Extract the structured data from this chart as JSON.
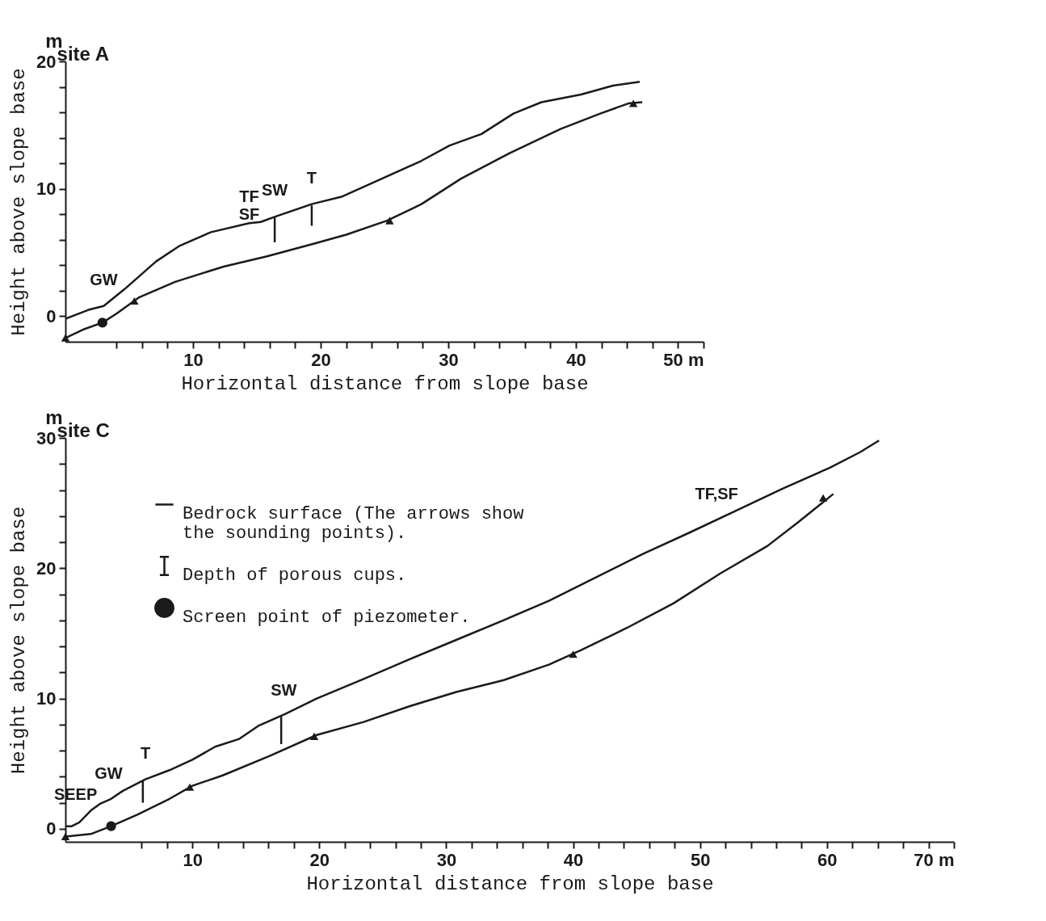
{
  "chart_data": [
    {
      "type": "line",
      "title": "site A",
      "xlabel": "Horizontal distance from slope base",
      "ylabel": "Height above slope base",
      "xlim": [
        0,
        50
      ],
      "ylim": [
        -2,
        20
      ],
      "xticks": [
        {
          "value": 4,
          "label": null
        },
        {
          "value": 6,
          "label": null
        },
        {
          "value": 8,
          "label": null
        },
        10,
        {
          "value": 12,
          "label": null
        },
        {
          "value": 14,
          "label": null
        },
        {
          "value": 16,
          "label": null
        },
        {
          "value": 18,
          "label": null
        },
        20,
        {
          "value": 22,
          "label": null
        },
        {
          "value": 24,
          "label": null
        },
        {
          "value": 26,
          "label": null
        },
        {
          "value": 28,
          "label": null
        },
        30,
        {
          "value": 32,
          "label": null
        },
        {
          "value": 34,
          "label": null
        },
        {
          "value": 36,
          "label": null
        },
        {
          "value": 38,
          "label": null
        },
        40,
        {
          "value": 42,
          "label": null
        },
        {
          "value": 44,
          "label": null
        },
        {
          "value": 46,
          "label": null
        },
        {
          "value": 48,
          "label": null
        },
        {
          "value": 50,
          "label": "50 m"
        }
      ],
      "yticks": [
        0,
        {
          "value": 2,
          "label": null
        },
        {
          "value": 4,
          "label": null
        },
        {
          "value": 6,
          "label": null
        },
        {
          "value": 8,
          "label": null
        },
        10,
        {
          "value": 12,
          "label": null
        },
        {
          "value": 14,
          "label": null
        },
        {
          "value": 16,
          "label": null
        },
        {
          "value": 18,
          "label": null
        },
        20
      ],
      "grid": false,
      "legend": false,
      "series": [
        {
          "type": "line",
          "color": "#1a1a1a",
          "x": [
            0,
            1.8,
            3.0,
            4.6,
            7.1,
            8.9,
            11.4,
            14.4,
            15.3,
            16.4,
            19.3,
            21.7,
            24.8,
            27.9,
            30.1,
            32.6,
            35.1,
            37.3,
            40.4,
            42.9,
            45.0
          ],
          "values": [
            -0.2,
            0.5,
            0.8,
            2.1,
            4.3,
            5.5,
            6.6,
            7.3,
            7.4,
            7.8,
            8.8,
            9.4,
            10.8,
            12.2,
            13.4,
            14.3,
            15.9,
            16.8,
            17.4,
            18.1,
            18.4
          ]
        },
        {
          "type": "line",
          "color": "#1a1a1a",
          "x": [
            0,
            1.5,
            2.9,
            4.0,
            5.8,
            8.6,
            12.4,
            15.8,
            19.5,
            22.0,
            25.2,
            27.9,
            31.0,
            34.8,
            38.8,
            41.9,
            44.1,
            45.2
          ],
          "values": [
            -1.7,
            -1.0,
            -0.5,
            0.2,
            1.5,
            2.7,
            3.9,
            4.7,
            5.7,
            6.4,
            7.5,
            8.8,
            10.8,
            12.8,
            14.7,
            15.9,
            16.7,
            16.8
          ]
        },
        {
          "type": "scatter",
          "marker": "triangle",
          "color": "#1a1a1a",
          "x": [
            0,
            5.4,
            25.4,
            44.5
          ],
          "values": [
            -1.7,
            1.2,
            7.5,
            16.7
          ]
        },
        {
          "type": "bar",
          "color": "#1a1a1a",
          "x": [
            16.4,
            19.3
          ],
          "base": [
            5.8,
            7.1
          ],
          "values": [
            2.0,
            1.6
          ]
        },
        {
          "type": "scatter",
          "marker": "circle",
          "color": "#1a1a1a",
          "x": [
            2.9
          ],
          "values": [
            -0.5
          ]
        }
      ],
      "annotations": [
        "m",
        {
          "text": "GW",
          "x": 3.0,
          "y": 0.8
        },
        {
          "text": "TF\nSF",
          "x": 14.4,
          "y": 7.3
        },
        {
          "text": "SW",
          "x": 16.4,
          "y": 7.8
        },
        {
          "text": "T",
          "x": 19.3,
          "y": 8.8
        }
      ]
    },
    {
      "type": "line",
      "title": "site C",
      "xlabel": "Horizontal distance from slope base",
      "ylabel": "Height above slope base",
      "xlim": [
        0,
        70
      ],
      "ylim": [
        -1,
        30
      ],
      "xticks": [
        {
          "value": 6,
          "label": null
        },
        {
          "value": 8,
          "label": null
        },
        10,
        {
          "value": 12,
          "label": null
        },
        {
          "value": 14,
          "label": null
        },
        {
          "value": 16,
          "label": null
        },
        {
          "value": 18,
          "label": null
        },
        20,
        {
          "value": 22,
          "label": null
        },
        {
          "value": 24,
          "label": null
        },
        {
          "value": 26,
          "label": null
        },
        {
          "value": 28,
          "label": null
        },
        30,
        {
          "value": 32,
          "label": null
        },
        {
          "value": 34,
          "label": null
        },
        {
          "value": 36,
          "label": null
        },
        {
          "value": 38,
          "label": null
        },
        40,
        {
          "value": 42,
          "label": null
        },
        {
          "value": 44,
          "label": null
        },
        {
          "value": 46,
          "label": null
        },
        {
          "value": 48,
          "label": null
        },
        50,
        {
          "value": 52,
          "label": null
        },
        {
          "value": 54,
          "label": null
        },
        {
          "value": 56,
          "label": null
        },
        {
          "value": 58,
          "label": null
        },
        60,
        {
          "value": 62,
          "label": null
        },
        {
          "value": 64,
          "label": null
        },
        {
          "value": 66,
          "label": null
        },
        {
          "value": 68,
          "label": null
        },
        {
          "value": 70,
          "label": "70 m"
        }
      ],
      "yticks": [
        0,
        {
          "value": 2,
          "label": null
        },
        {
          "value": 4,
          "label": null
        },
        {
          "value": 6,
          "label": null
        },
        {
          "value": 8,
          "label": null
        },
        10,
        {
          "value": 12,
          "label": null
        },
        {
          "value": 14,
          "label": null
        },
        {
          "value": 16,
          "label": null
        },
        {
          "value": 18,
          "label": null
        },
        20,
        {
          "value": 22,
          "label": null
        },
        {
          "value": 24,
          "label": null
        },
        {
          "value": 26,
          "label": null
        },
        {
          "value": 28,
          "label": null
        },
        30
      ],
      "grid": false,
      "legend": "top left",
      "series": [
        {
          "type": "line",
          "color": "#1a1a1a",
          "x": [
            0,
            0.5,
            1.1,
            2.0,
            2.7,
            3.6,
            4.5,
            6.3,
            8.2,
            10.0,
            11.8,
            13.7,
            15.2,
            17.3,
            19.8,
            23.5,
            27.1,
            30.8,
            34.5,
            38.1,
            41.8,
            45.5,
            49.1,
            52.8,
            56.5,
            60.2,
            62.6,
            64.1
          ],
          "values": [
            0.2,
            0.2,
            0.5,
            1.4,
            1.9,
            2.3,
            2.9,
            3.8,
            4.5,
            5.3,
            6.3,
            6.9,
            7.9,
            8.8,
            10.0,
            11.5,
            13.0,
            14.5,
            16.0,
            17.5,
            19.3,
            21.1,
            22.7,
            24.4,
            26.1,
            27.7,
            28.9,
            29.8
          ]
        },
        {
          "type": "line",
          "name": "Bedrock surface (The arrows show the sounding points).",
          "color": "#1a1a1a",
          "x": [
            0,
            2.0,
            3.6,
            5.7,
            8.2,
            10.0,
            12.4,
            16.1,
            19.8,
            23.5,
            27.1,
            30.8,
            34.5,
            38.1,
            40.6,
            44.2,
            47.9,
            51.6,
            55.3,
            57.7,
            60.5
          ],
          "values": [
            -0.6,
            -0.4,
            0.2,
            1.1,
            2.3,
            3.3,
            4.1,
            5.6,
            7.2,
            8.2,
            9.4,
            10.5,
            11.4,
            12.6,
            13.7,
            15.4,
            17.3,
            19.6,
            21.7,
            23.5,
            25.7
          ]
        },
        {
          "type": "scatter",
          "marker": "triangle",
          "color": "#1a1a1a",
          "x": [
            0,
            9.8,
            19.6,
            40.0,
            59.7
          ],
          "values": [
            -0.6,
            3.2,
            7.1,
            13.4,
            25.4
          ]
        },
        {
          "type": "bar",
          "name": "Depth of porous cups.",
          "color": "#1a1a1a",
          "x": [
            6.1,
            17.0
          ],
          "base": [
            2.0,
            6.5
          ],
          "values": [
            1.7,
            2.1
          ]
        },
        {
          "type": "scatter",
          "marker": "circle",
          "name": "Screen point of piezometer.",
          "color": "#1a1a1a",
          "x": [
            3.6
          ],
          "values": [
            0.2
          ]
        }
      ],
      "annotations": [
        "m",
        {
          "text": "SEEP",
          "x": 0.8,
          "y": 0.6
        },
        {
          "text": "GW",
          "x": 3.4,
          "y": 2.2
        },
        {
          "text": "T",
          "x": 6.3,
          "y": 3.8
        },
        {
          "text": "SW",
          "x": 17.2,
          "y": 8.6
        },
        {
          "text": "TF,SF",
          "x": 51.3,
          "y": 23.7
        }
      ]
    }
  ]
}
